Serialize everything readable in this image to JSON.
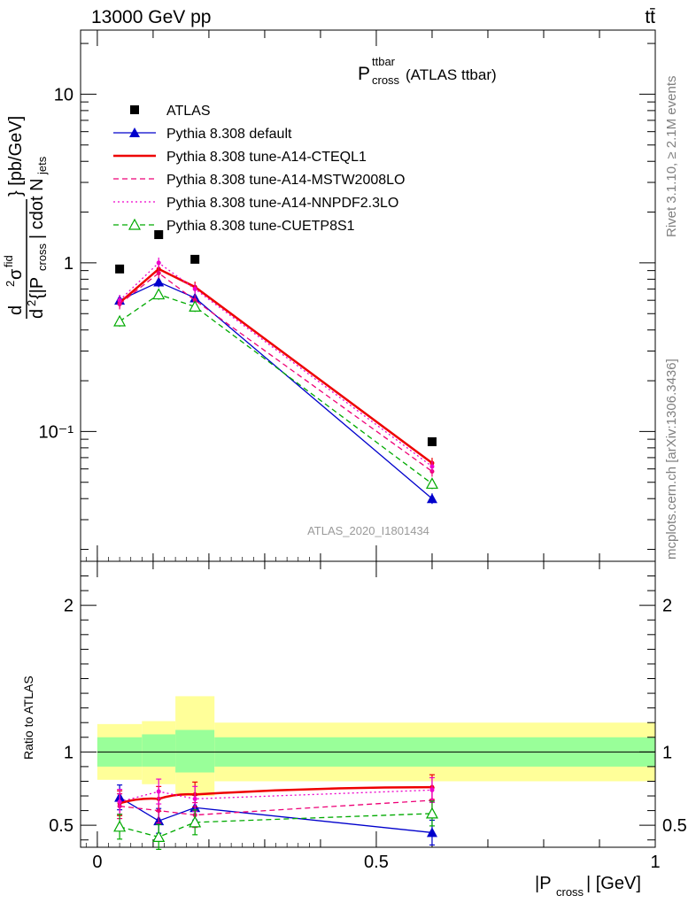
{
  "header": {
    "energy_label": "13000 GeV pp",
    "process_label": "tt̄"
  },
  "side_labels": {
    "rivet": "Rivet 3.1.10, ≥ 2.1M events",
    "mcplots": "mcplots.cern.ch [arXiv:1306.3436]"
  },
  "chart_data": [
    {
      "type": "scatter",
      "title_main": "P",
      "title_sup": "ttbar",
      "title_sub": "cross",
      "title_suffix": "(ATLAS ttbar)",
      "watermark": "ATLAS_2020_I1801434",
      "yscale": "log",
      "ylim": [
        0.017,
        24
      ],
      "xlim": [
        -0.03,
        1.0
      ],
      "ylabel": "d²σ^fid / d²{|P_cross| cdot N_jets} [pb/GeV]",
      "ytick_labels": [
        "10⁻¹",
        "1",
        "10"
      ],
      "legend_position": "top-left",
      "x": [
        0.04,
        0.11,
        0.175,
        0.6
      ],
      "series": [
        {
          "name": "ATLAS",
          "values": [
            0.92,
            1.47,
            1.05,
            0.087
          ],
          "color": "#000000",
          "style": "square"
        },
        {
          "name": "Pythia 8.308 default",
          "values": [
            0.6,
            0.77,
            0.62,
            0.04
          ],
          "color": "#0000cc",
          "style": "solid-triangle"
        },
        {
          "name": "Pythia 8.308 tune-A14-CTEQL1",
          "values": [
            0.58,
            0.92,
            0.72,
            0.065
          ],
          "color": "#ee0000",
          "style": "thick"
        },
        {
          "name": "Pythia 8.308 tune-A14-MSTW2008LO",
          "values": [
            0.57,
            0.87,
            0.6,
            0.058
          ],
          "color": "#ee0077",
          "style": "dashed"
        },
        {
          "name": "Pythia 8.308 tune-A14-NNPDF2.3LO",
          "values": [
            0.6,
            1.0,
            0.7,
            0.062
          ],
          "color": "#ee00cc",
          "style": "dotted"
        },
        {
          "name": "Pythia 8.308 tune-CUETP8S1",
          "values": [
            0.45,
            0.65,
            0.55,
            0.049
          ],
          "color": "#00aa00",
          "style": "dashed-open-triangle"
        }
      ]
    },
    {
      "type": "line",
      "ylabel": "Ratio to ATLAS",
      "xlabel": "|P_cross| [GeV]",
      "ylim": [
        0.35,
        2.3
      ],
      "ytick_labels": [
        "0.5",
        "1",
        "2"
      ],
      "xtick_labels": [
        "0",
        "0.5",
        "1"
      ],
      "bands": [
        {
          "x0": 0.0,
          "x1": 0.08,
          "inner": [
            0.9,
            1.1
          ],
          "outer": [
            0.81,
            1.19
          ]
        },
        {
          "x0": 0.08,
          "x1": 0.14,
          "inner": [
            0.9,
            1.12
          ],
          "outer": [
            0.78,
            1.21
          ]
        },
        {
          "x0": 0.14,
          "x1": 0.21,
          "inner": [
            0.86,
            1.15
          ],
          "outer": [
            0.7,
            1.38
          ]
        },
        {
          "x0": 0.21,
          "x1": 1.0,
          "inner": [
            0.9,
            1.1
          ],
          "outer": [
            0.8,
            1.2
          ]
        }
      ],
      "x": [
        0.04,
        0.11,
        0.175,
        0.6
      ],
      "series": [
        {
          "name": "Pythia 8.308 default",
          "values": [
            0.69,
            0.53,
            0.62,
            0.45
          ],
          "color": "#0000cc",
          "style": "solid-triangle"
        },
        {
          "name": "Pythia 8.308 tune-A14-CTEQL1",
          "values": [
            0.65,
            0.68,
            0.71,
            0.76
          ],
          "color": "#ee0000",
          "style": "thick-smooth"
        },
        {
          "name": "Pythia 8.308 tune-A14-MSTW2008LO",
          "values": [
            0.63,
            0.6,
            0.57,
            0.67
          ],
          "color": "#ee0077",
          "style": "dashed"
        },
        {
          "name": "Pythia 8.308 tune-A14-NNPDF2.3LO",
          "values": [
            0.66,
            0.73,
            0.68,
            0.74
          ],
          "color": "#ee00cc",
          "style": "dotted"
        },
        {
          "name": "Pythia 8.308 tune-CUETP8S1",
          "values": [
            0.49,
            0.42,
            0.52,
            0.58
          ],
          "color": "#00aa00",
          "style": "dashed-open-triangle"
        }
      ]
    }
  ]
}
